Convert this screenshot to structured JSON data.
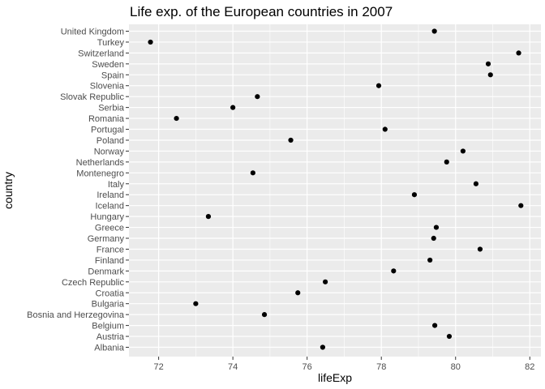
{
  "chart_data": {
    "type": "scatter",
    "title": "Life exp. of the European countries in 2007",
    "xlabel": "lifeExp",
    "ylabel": "country",
    "xlim": [
      71.2,
      82.3
    ],
    "x_ticks": [
      72,
      74,
      76,
      78,
      80,
      82
    ],
    "x_tick_labels": [
      "72",
      "74",
      "76",
      "78",
      "80",
      "82"
    ],
    "grid": true,
    "panel_background": "#ebebeb",
    "grid_color": "#ffffff",
    "point_color": "#000000",
    "categories": [
      "Albania",
      "Austria",
      "Belgium",
      "Bosnia and Herzegovina",
      "Bulgaria",
      "Croatia",
      "Czech Republic",
      "Denmark",
      "Finland",
      "France",
      "Germany",
      "Greece",
      "Hungary",
      "Iceland",
      "Ireland",
      "Italy",
      "Montenegro",
      "Netherlands",
      "Norway",
      "Poland",
      "Portugal",
      "Romania",
      "Serbia",
      "Slovak Republic",
      "Slovenia",
      "Spain",
      "Sweden",
      "Switzerland",
      "Turkey",
      "United Kingdom"
    ],
    "values": [
      76.42,
      79.83,
      79.44,
      74.85,
      73.0,
      75.75,
      76.49,
      78.33,
      79.31,
      80.66,
      79.41,
      79.48,
      73.34,
      81.76,
      78.89,
      80.55,
      74.54,
      79.76,
      80.2,
      75.56,
      78.1,
      72.48,
      74.0,
      74.66,
      77.93,
      80.94,
      80.88,
      81.7,
      71.78,
      79.43
    ]
  }
}
